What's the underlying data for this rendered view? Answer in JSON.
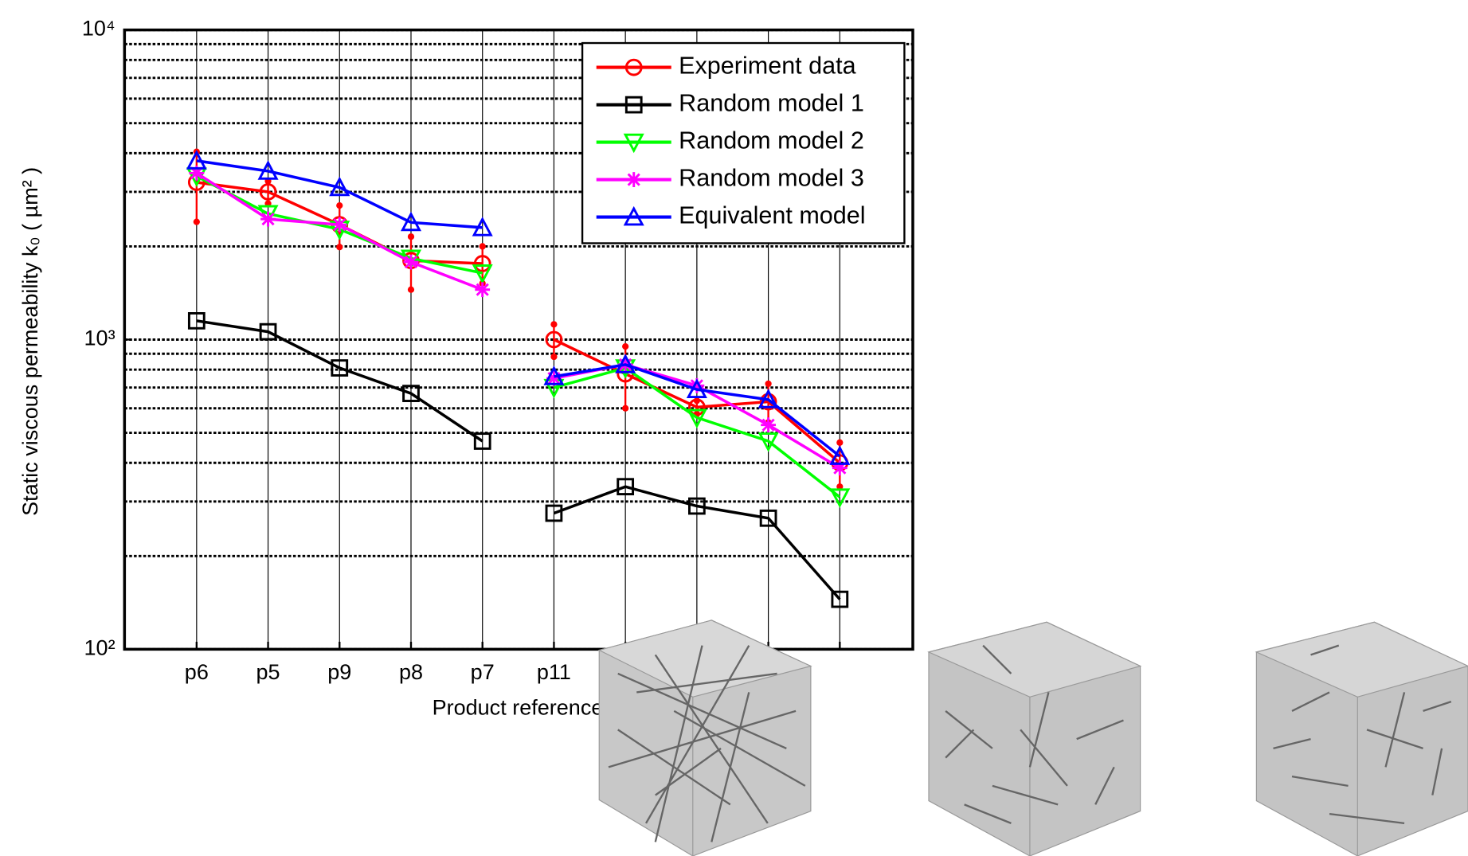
{
  "chart_data": {
    "type": "line",
    "ylabel": "Static viscous permeability k₀ ( µm² )",
    "xlabel": "Product reference",
    "categories": [
      "p6",
      "p5",
      "p9",
      "p8",
      "p7",
      "p11",
      null,
      null,
      null,
      null
    ],
    "log_y": true,
    "grid": true,
    "legend": "upper right",
    "ylim": [
      100,
      10000
    ],
    "yticks": [
      {
        "value": 100,
        "label": "10²"
      },
      {
        "value": 1000,
        "label": "10³"
      },
      {
        "value": 10000,
        "label": "10⁴"
      }
    ],
    "yminorticks": [
      200,
      300,
      400,
      500,
      600,
      700,
      800,
      900,
      2000,
      3000,
      4000,
      5000,
      6000,
      7000,
      8000,
      9000
    ],
    "series": [
      {
        "name": "Experiment data",
        "color": "#ff0000",
        "marker": "circle",
        "values": [
          3220,
          3000,
          2350,
          1800,
          1760,
          1000,
          775,
          605,
          630,
          400
        ],
        "errors": [
          820,
          250,
          360,
          350,
          240,
          120,
          175,
          30,
          90,
          65
        ]
      },
      {
        "name": "Random model 1",
        "color": "#000000",
        "marker": "square",
        "values": [
          1150,
          1060,
          810,
          670,
          470,
          275,
          335,
          290,
          265,
          145
        ]
      },
      {
        "name": "Random model 2",
        "color": "#00ff00",
        "marker": "triangle-down",
        "values": [
          3370,
          2550,
          2270,
          1830,
          1640,
          700,
          810,
          560,
          470,
          310
        ]
      },
      {
        "name": "Random model 3",
        "color": "#ff00ff",
        "marker": "asterisk",
        "values": [
          3450,
          2450,
          2350,
          1780,
          1450,
          750,
          830,
          710,
          530,
          385
        ]
      },
      {
        "name": "Equivalent model",
        "color": "#0000ff",
        "marker": "triangle-up",
        "values": [
          3780,
          3500,
          3100,
          2390,
          2300,
          760,
          830,
          690,
          640,
          420
        ]
      }
    ]
  }
}
